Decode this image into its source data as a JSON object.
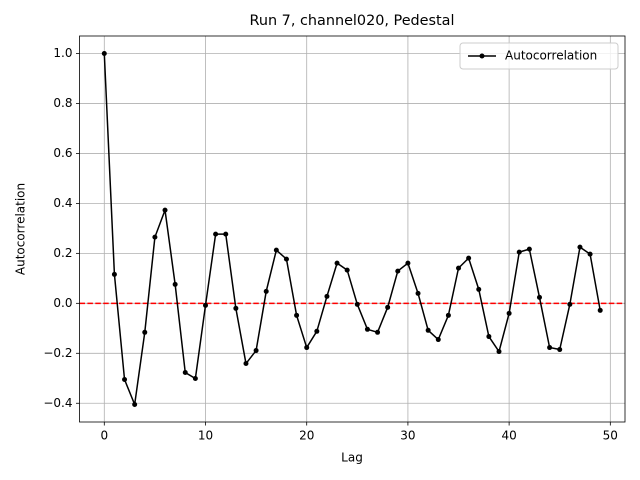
{
  "chart_data": {
    "type": "line",
    "title": "Run 7, channel020, Pedestal",
    "xlabel": "Lag",
    "ylabel": "Autocorrelation",
    "x": [
      0,
      1,
      2,
      3,
      4,
      5,
      6,
      7,
      8,
      9,
      10,
      11,
      12,
      13,
      14,
      15,
      16,
      17,
      18,
      19,
      20,
      21,
      22,
      23,
      24,
      25,
      26,
      27,
      28,
      29,
      30,
      31,
      32,
      33,
      34,
      35,
      36,
      37,
      38,
      39,
      40,
      41,
      42,
      43,
      44,
      45,
      46,
      47,
      48,
      49
    ],
    "series": [
      {
        "name": "Autocorrelation",
        "color": "#000000",
        "marker": true,
        "values": [
          1.0,
          0.116,
          -0.305,
          -0.405,
          -0.116,
          0.265,
          0.373,
          0.076,
          -0.277,
          -0.301,
          -0.008,
          0.277,
          0.277,
          -0.02,
          -0.241,
          -0.189,
          0.048,
          0.213,
          0.177,
          -0.048,
          -0.177,
          -0.112,
          0.028,
          0.161,
          0.133,
          -0.004,
          -0.104,
          -0.116,
          -0.016,
          0.129,
          0.161,
          0.04,
          -0.108,
          -0.145,
          -0.048,
          0.141,
          0.181,
          0.056,
          -0.133,
          -0.193,
          -0.04,
          0.205,
          0.217,
          0.024,
          -0.177,
          -0.185,
          -0.004,
          0.225,
          0.197,
          -0.028
        ]
      }
    ],
    "hline": {
      "value": 0,
      "color": "#ff0000",
      "style": "dashed"
    },
    "xlim": [
      -2.45,
      51.45
    ],
    "xticks": [
      0,
      10,
      20,
      30,
      40,
      50
    ],
    "ylim": [
      -0.475,
      1.07
    ],
    "yticks": [
      {
        "value": -0.4,
        "label": "−0.4"
      },
      {
        "value": -0.2,
        "label": "−0.2"
      },
      {
        "value": 0,
        "label": "0.0"
      },
      {
        "value": 0.2,
        "label": "0.2"
      },
      {
        "value": 0.4,
        "label": "0.4"
      },
      {
        "value": 0.6,
        "label": "0.6"
      },
      {
        "value": 0.8,
        "label": "0.8"
      },
      {
        "value": 1.0,
        "label": "1.0"
      }
    ],
    "grid": true,
    "legend": "upper-right"
  }
}
